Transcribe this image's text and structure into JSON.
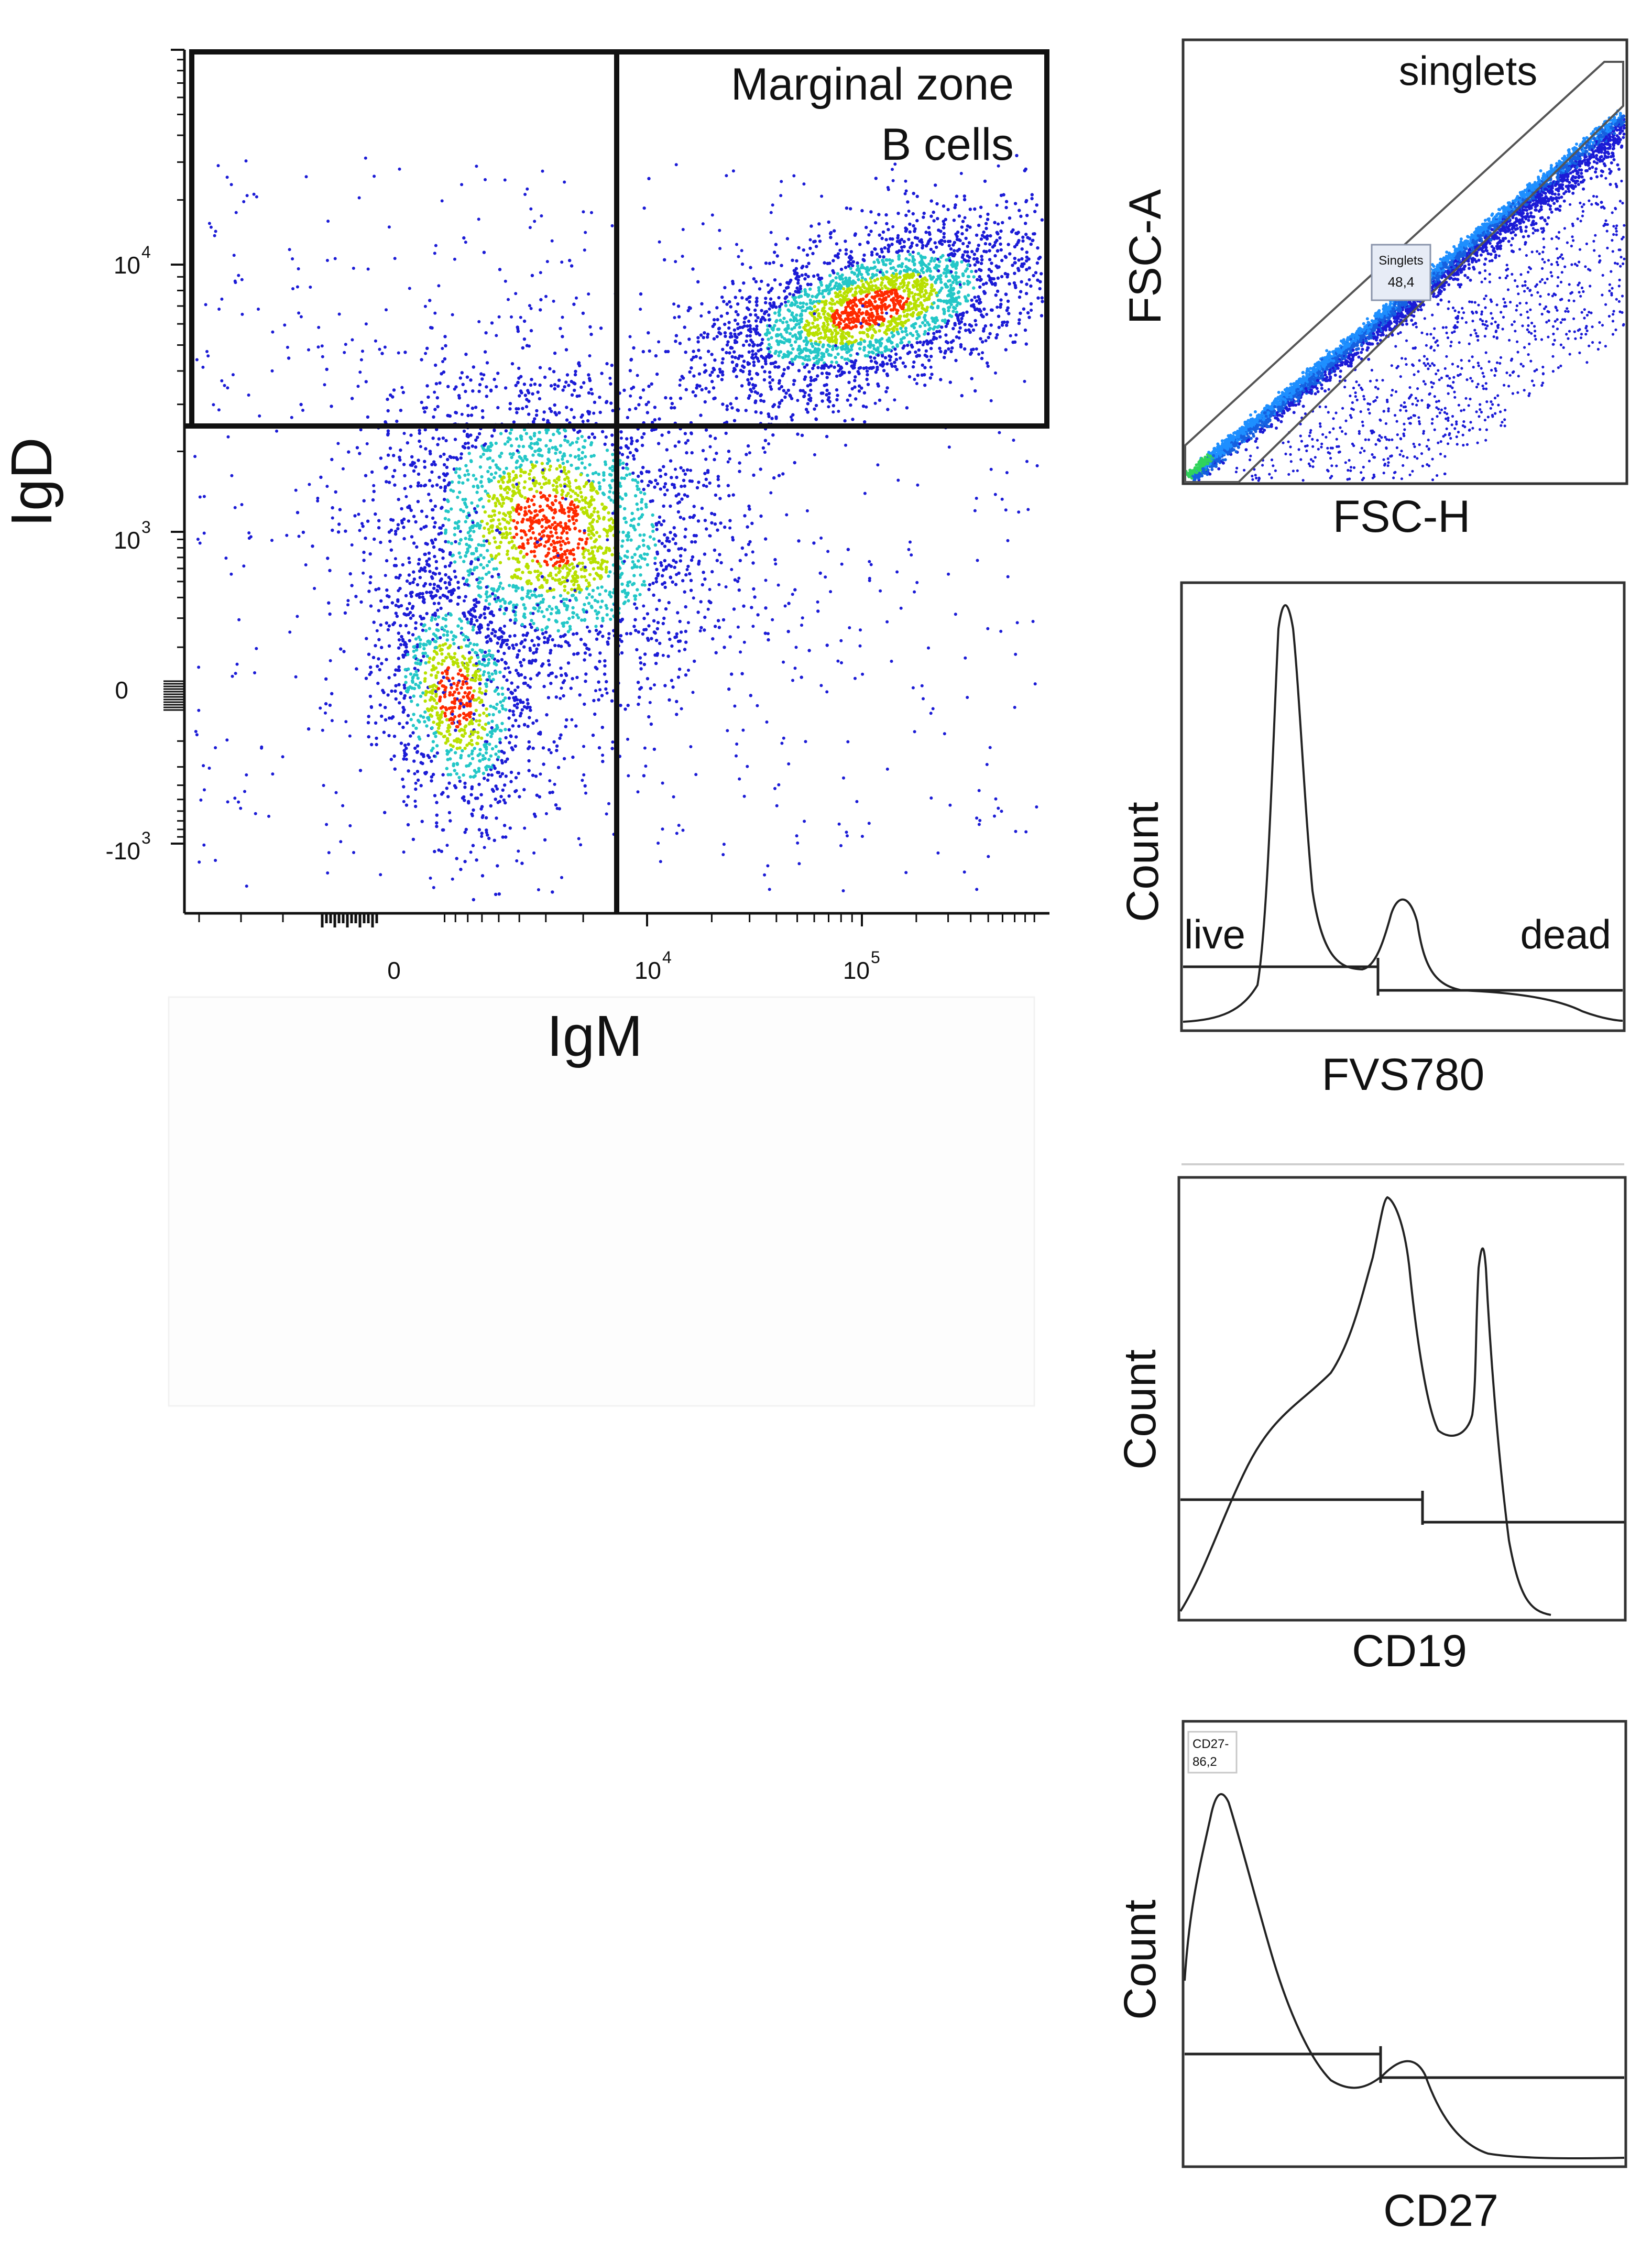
{
  "chart_data": [
    {
      "type": "scatter",
      "xlabel": "IgM",
      "ylabel": "IgD",
      "xticks": [
        "0",
        "10^4",
        "10^5"
      ],
      "yticks": [
        "10^4",
        "10^3",
        "0",
        "-10^3"
      ],
      "gate_label_line1": "Marginal zone",
      "gate_label_line2": "B cells",
      "quadrant_divider_x": 8000,
      "quadrant_divider_y": 2500,
      "populations": [
        {
          "name": "",
          "center_x": 150000,
          "center_y": 6000,
          "density": "high"
        },
        {
          "name": "",
          "center_x": 3500,
          "center_y": 1100,
          "density": "high"
        },
        {
          "name": "",
          "center_x": 900,
          "center_y": 0,
          "density": "medium"
        }
      ],
      "colors": {
        "low": "#1b1bd6",
        "mid": "#23c7c7",
        "midhigh": "#b8e000",
        "high": "#ff2a00"
      }
    },
    {
      "type": "scatter",
      "xlabel": "FSC-H",
      "ylabel": "FSC-A",
      "gate_name": "singlets",
      "gate_small_label": "Singlets",
      "gate_percent": "48,4"
    },
    {
      "type": "line",
      "xlabel": "FVS780",
      "ylabel": "Count",
      "gates": [
        {
          "label": "live"
        },
        {
          "label": "dead"
        }
      ],
      "peaks": [
        {
          "position": 0.25,
          "relative_height": 1.0
        },
        {
          "position": 0.5,
          "relative_height": 0.3
        }
      ]
    },
    {
      "type": "line",
      "xlabel": "CD19",
      "ylabel": "Count",
      "peaks": [
        {
          "position": 0.45,
          "relative_height": 1.0
        },
        {
          "position": 0.66,
          "relative_height": 0.82
        }
      ]
    },
    {
      "type": "line",
      "xlabel": "CD27",
      "ylabel": "Count",
      "gate_label_line1": "CD27-",
      "gate_label_line2": "86,2",
      "peaks": [
        {
          "position": 0.1,
          "relative_height": 1.0
        },
        {
          "position": 0.52,
          "relative_height": 0.28
        }
      ]
    }
  ]
}
